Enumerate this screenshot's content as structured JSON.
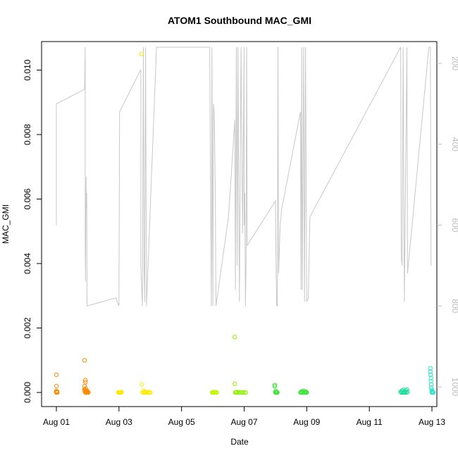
{
  "chart_data": {
    "type": "scatter",
    "title": "ATOM1 Southbound MAC_GMI",
    "xlabel": "Date",
    "ylabel": "MAC_GMI",
    "x_ticks": [
      "Aug 01",
      "Aug 03",
      "Aug 05",
      "Aug 07",
      "Aug 09",
      "Aug 11",
      "Aug 13"
    ],
    "y_ticks": [
      "0.000",
      "0.002",
      "0.004",
      "0.006",
      "0.008",
      "0.010"
    ],
    "y2_ticks": [
      "200",
      "400",
      "600",
      "800",
      "1000"
    ],
    "xlim": [
      0,
      12.6
    ],
    "ylim": [
      0,
      0.0109
    ],
    "y2lim": [
      1040,
      160
    ],
    "grid": false,
    "legend": "none",
    "point_series": [
      {
        "color": "#ff8c00",
        "points": [
          [
            0,
            0.00055
          ],
          [
            0,
            0.0002
          ],
          [
            0,
            0.0
          ],
          [
            0,
            2e-05
          ],
          [
            0,
            4e-05
          ],
          [
            0.02,
            1e-05
          ],
          [
            0.02,
            3e-05
          ],
          [
            0.03,
            0.0
          ],
          [
            0.9,
            0.001
          ],
          [
            0.92,
            0.00038
          ],
          [
            0.93,
            0.00032
          ],
          [
            0.9,
            0.0002
          ],
          [
            0.9,
            0.0001
          ],
          [
            0.9,
            8e-05
          ],
          [
            0.91,
            5e-05
          ],
          [
            0.92,
            2e-05
          ],
          [
            0.93,
            0.0
          ],
          [
            0.94,
            0.00012
          ],
          [
            0.95,
            6e-05
          ],
          [
            0.95,
            1e-05
          ],
          [
            0.96,
            3e-05
          ],
          [
            0.97,
            0.0
          ],
          [
            0.98,
            5e-05
          ],
          [
            0.99,
            0.0
          ],
          [
            1.0,
            2e-05
          ],
          [
            1.02,
            0.0
          ]
        ]
      },
      {
        "color": "#ffea00",
        "points": [
          [
            1.98,
            0.0
          ],
          [
            2.0,
            0.0
          ],
          [
            2.02,
            0.0
          ],
          [
            2.04,
            0.0
          ],
          [
            2.06,
            0.0
          ],
          [
            2.08,
            1e-05
          ],
          [
            2.72,
            0.0105
          ],
          [
            2.73,
            0.00025
          ],
          [
            2.75,
            0.0
          ],
          [
            2.78,
            5e-05
          ],
          [
            2.8,
            0.0
          ],
          [
            2.83,
            2e-05
          ],
          [
            2.86,
            0.0
          ],
          [
            2.9,
            1e-05
          ],
          [
            2.95,
            0.0
          ],
          [
            2.98,
            0.0
          ],
          [
            3.0,
            0.0
          ]
        ]
      },
      {
        "color": "#c5f500",
        "points": [
          [
            4.98,
            0.0
          ],
          [
            5.0,
            0.0
          ],
          [
            5.02,
            0.0
          ],
          [
            5.04,
            1e-05
          ],
          [
            5.06,
            0.0
          ],
          [
            5.08,
            0.0
          ],
          [
            5.1,
            0.0
          ],
          [
            5.12,
            0.0
          ]
        ]
      },
      {
        "color": "#8ef000",
        "points": [
          [
            5.7,
            0.00172
          ],
          [
            5.7,
            0.00027
          ],
          [
            5.72,
            0.0
          ],
          [
            5.74,
            0.0
          ],
          [
            5.76,
            1e-05
          ],
          [
            5.8,
            0.0
          ],
          [
            5.85,
            0.0
          ],
          [
            5.9,
            0.0
          ],
          [
            5.95,
            0.0
          ],
          [
            6.0,
            0.0
          ],
          [
            6.05,
            0.0
          ]
        ]
      },
      {
        "color": "#3ce43c",
        "points": [
          [
            6.98,
            0.00023
          ],
          [
            6.98,
            0.00019
          ],
          [
            7.0,
            0.0
          ],
          [
            7.01,
            4e-05
          ],
          [
            7.02,
            0.0
          ],
          [
            7.04,
            1e-05
          ],
          [
            7.06,
            0.0
          ],
          [
            7.8,
            0.0
          ],
          [
            7.82,
            2e-05
          ],
          [
            7.84,
            0.0
          ],
          [
            7.86,
            3e-05
          ],
          [
            7.88,
            0.0
          ],
          [
            7.9,
            5e-05
          ],
          [
            7.92,
            0.0
          ],
          [
            7.94,
            1e-05
          ],
          [
            7.96,
            0.0
          ],
          [
            7.98,
            2e-05
          ],
          [
            8.0,
            0.0
          ]
        ]
      },
      {
        "color": "#1edc9b",
        "points": [
          [
            11.0,
            2e-05
          ],
          [
            11.02,
            0.0
          ],
          [
            11.04,
            5e-05
          ],
          [
            11.06,
            0.0
          ],
          [
            11.08,
            8e-05
          ],
          [
            11.1,
            0.0
          ],
          [
            11.12,
            3e-05
          ],
          [
            11.14,
            0.0
          ],
          [
            11.16,
            6e-05
          ],
          [
            11.18,
            0.0
          ],
          [
            11.2,
            9e-05
          ],
          [
            11.22,
            2e-05
          ]
        ]
      },
      {
        "color": "#2de6c8",
        "points": [
          [
            11.95,
            0.00075
          ],
          [
            11.95,
            0.00065
          ],
          [
            11.96,
            0.00055
          ],
          [
            11.97,
            0.00045
          ],
          [
            11.97,
            0.00035
          ],
          [
            11.98,
            0.00025
          ],
          [
            11.98,
            0.00015
          ],
          [
            11.99,
            8e-05
          ],
          [
            12.0,
            2e-05
          ],
          [
            12.0,
            0.0
          ],
          [
            12.01,
            4e-05
          ],
          [
            12.02,
            0.0
          ],
          [
            12.03,
            1e-05
          ],
          [
            12.04,
            0.0
          ]
        ]
      }
    ],
    "line_series": {
      "color": "#c8c8c8",
      "points": [
        [
          0,
          600
        ],
        [
          0,
          300
        ],
        [
          0.9,
          264
        ],
        [
          0.92,
          160
        ],
        [
          0.92,
          660
        ],
        [
          0.93,
          720
        ],
        [
          0.93,
          740
        ],
        [
          0.95,
          480
        ],
        [
          0.96,
          560
        ],
        [
          0.97,
          520
        ],
        [
          0.98,
          800
        ],
        [
          1.9,
          780
        ],
        [
          2.0,
          800
        ],
        [
          2.02,
          320
        ],
        [
          2.7,
          215
        ],
        [
          2.7,
          700
        ],
        [
          2.75,
          800
        ],
        [
          2.78,
          160
        ],
        [
          2.8,
          700
        ],
        [
          2.82,
          790
        ],
        [
          2.85,
          160
        ],
        [
          2.88,
          800
        ],
        [
          3.2,
          160
        ],
        [
          4.9,
          160
        ],
        [
          4.95,
          800
        ],
        [
          4.97,
          160
        ],
        [
          5.0,
          800
        ],
        [
          5.02,
          300
        ],
        [
          5.04,
          320
        ],
        [
          5.06,
          400
        ],
        [
          5.08,
          540
        ],
        [
          5.1,
          800
        ],
        [
          5.5,
          580
        ],
        [
          5.7,
          340
        ],
        [
          5.72,
          760
        ],
        [
          5.75,
          160
        ],
        [
          5.78,
          700
        ],
        [
          5.8,
          160
        ],
        [
          5.85,
          790
        ],
        [
          5.9,
          160
        ],
        [
          5.95,
          620
        ],
        [
          6.0,
          160
        ],
        [
          6.0,
          600
        ],
        [
          6.02,
          520
        ],
        [
          6.04,
          800
        ],
        [
          6.06,
          700
        ],
        [
          6.08,
          160
        ],
        [
          6.1,
          650
        ],
        [
          7.0,
          540
        ],
        [
          7.02,
          700
        ],
        [
          7.04,
          800
        ],
        [
          7.06,
          800
        ],
        [
          7.08,
          160
        ],
        [
          7.1,
          720
        ],
        [
          7.15,
          600
        ],
        [
          7.2,
          560
        ],
        [
          7.8,
          320
        ],
        [
          7.82,
          760
        ],
        [
          7.84,
          160
        ],
        [
          7.86,
          760
        ],
        [
          7.9,
          160
        ],
        [
          7.93,
          790
        ],
        [
          7.96,
          160
        ],
        [
          8.0,
          790
        ],
        [
          8.05,
          780
        ],
        [
          8.1,
          580
        ],
        [
          11.0,
          160
        ],
        [
          11.02,
          680
        ],
        [
          11.05,
          700
        ],
        [
          11.08,
          160
        ],
        [
          11.12,
          790
        ],
        [
          11.2,
          160
        ],
        [
          11.22,
          720
        ],
        [
          11.9,
          160
        ],
        [
          11.95,
          160
        ],
        [
          11.97,
          700
        ]
      ]
    }
  }
}
